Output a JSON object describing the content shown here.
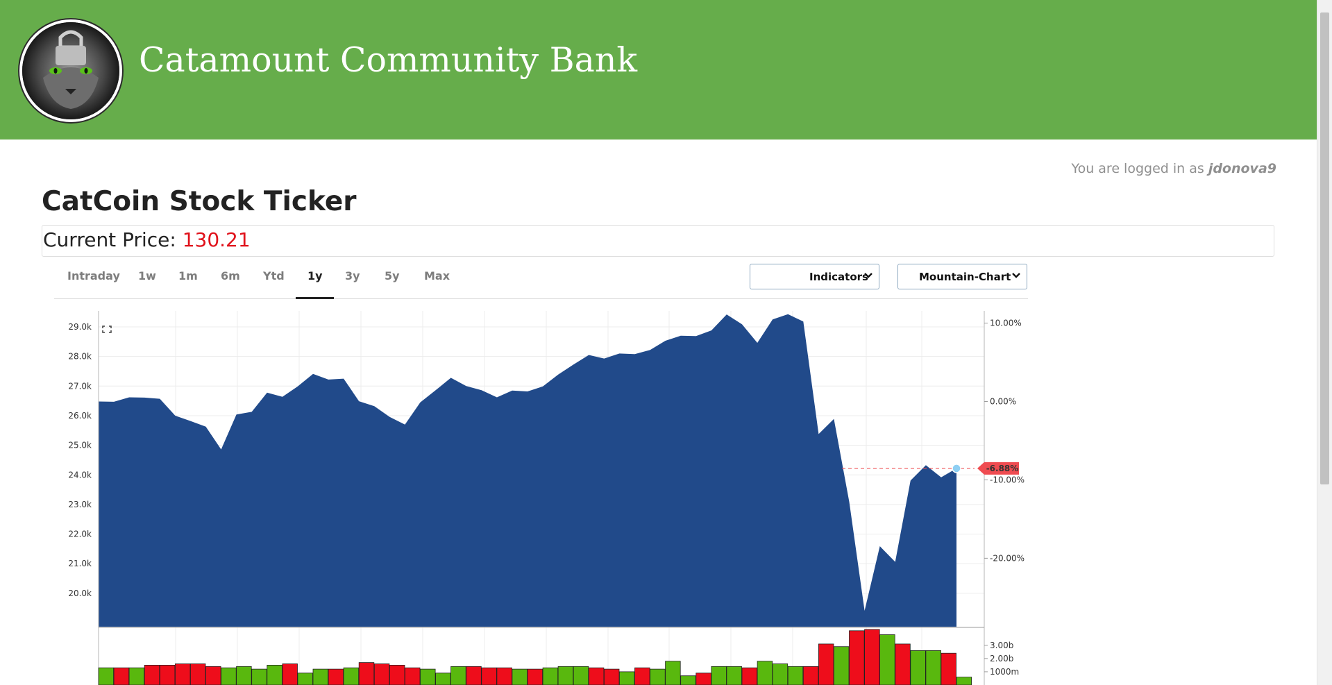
{
  "header": {
    "bank_name": "Catamount Community Bank"
  },
  "session": {
    "prefix": "You are logged in as ",
    "username": "jdonova9"
  },
  "page": {
    "title": "CatCoin Stock Ticker"
  },
  "price": {
    "label": "Current Price: ",
    "value": "130.21",
    "value_color": "#e0121b"
  },
  "tabs": [
    "Intraday",
    "1w",
    "1m",
    "6m",
    "Ytd",
    "1y",
    "3y",
    "5y",
    "Max"
  ],
  "active_tab": "1y",
  "dropdowns": {
    "indicators": "Indicators",
    "chart_type": "Mountain-Chart"
  },
  "colors": {
    "brand": "#66ad4b",
    "area": "#214a8a",
    "vol_up": "#59b80e",
    "vol_down": "#ee0d1b",
    "marker": "#ef4c51"
  },
  "chart_data": {
    "type": "area",
    "y_ticks": [
      "29.0k",
      "28.0k",
      "27.0k",
      "26.0k",
      "25.0k",
      "24.0k",
      "23.0k",
      "22.0k",
      "21.0k",
      "20.0k"
    ],
    "y_tick_values": [
      29000,
      28000,
      27000,
      26000,
      25000,
      24000,
      23000,
      22000,
      21000,
      20000
    ],
    "pct_ticks": [
      "10.00%",
      "0.00%",
      "-10.00%",
      "-20.00%"
    ],
    "pct_tick_values": [
      10,
      0,
      -10,
      -20
    ],
    "last_change_label": "-6.88%",
    "volume_ticks": [
      "3.00b",
      "2.00b",
      "1000m"
    ],
    "volume_tick_values": [
      3000000000,
      2000000000,
      1000000000
    ],
    "ylim": [
      19000,
      29400
    ],
    "values": [
      26480,
      26470,
      26620,
      26610,
      26570,
      26000,
      25820,
      25630,
      24860,
      26040,
      26130,
      26780,
      26640,
      26990,
      27410,
      27220,
      27250,
      26490,
      26320,
      25960,
      25700,
      26450,
      26860,
      27280,
      27000,
      26860,
      26620,
      26850,
      26820,
      26990,
      27390,
      27730,
      28050,
      27930,
      28100,
      28080,
      28220,
      28530,
      28700,
      28690,
      28880,
      29420,
      29090,
      28460,
      29250,
      29430,
      29180,
      25380,
      25890,
      23090,
      19410,
      21590,
      21060,
      23810,
      24330,
      23920,
      24220
    ],
    "volume": [
      1300000000.0,
      1300000000.0,
      1300000000.0,
      1500000000.0,
      1500000000.0,
      1600000000.0,
      1600000000.0,
      1400000000.0,
      1300000000.0,
      1400000000.0,
      1200000000.0,
      1500000000.0,
      1600000000.0,
      900000000.0,
      1200000000.0,
      1200000000.0,
      1300000000.0,
      1700000000.0,
      1600000000.0,
      1500000000.0,
      1300000000.0,
      1200000000.0,
      900000000.0,
      1400000000.0,
      1400000000.0,
      1300000000.0,
      1300000000.0,
      1200000000.0,
      1200000000.0,
      1300000000.0,
      1400000000.0,
      1400000000.0,
      1300000000.0,
      1200000000.0,
      1000000000.0,
      1300000000.0,
      1200000000.0,
      1800000000.0,
      700000000.0,
      900000000.0,
      1400000000.0,
      1400000000.0,
      1300000000.0,
      1800000000.0,
      1600000000.0,
      1400000000.0,
      1400000000.0,
      3100000000.0,
      2900000000.0,
      4100000000.0,
      4200000000.0,
      3800000000.0,
      3100000000.0,
      2600000000.0,
      2600000000.0,
      2400000000.0,
      600000000.0
    ],
    "volume_up": [
      true,
      false,
      true,
      false,
      false,
      false,
      false,
      false,
      true,
      true,
      true,
      true,
      false,
      true,
      true,
      false,
      true,
      false,
      false,
      false,
      false,
      true,
      true,
      true,
      false,
      false,
      false,
      true,
      false,
      true,
      true,
      true,
      false,
      false,
      true,
      false,
      true,
      true,
      true,
      false,
      true,
      true,
      false,
      true,
      true,
      true,
      false,
      false,
      true,
      false,
      false,
      true,
      false,
      true,
      true,
      false,
      true
    ],
    "grid": true
  }
}
